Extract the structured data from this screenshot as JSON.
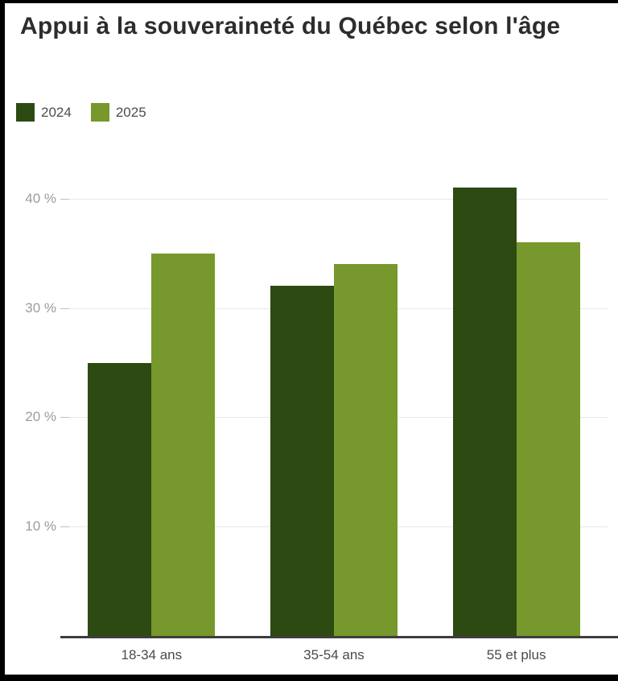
{
  "title": "Appui à la souveraineté du Québec selon l'âge",
  "chart_data": {
    "type": "bar",
    "title": "Appui à la souveraineté du Québec selon l'âge",
    "categories": [
      "18-34 ans",
      "35-54 ans",
      "55 et plus"
    ],
    "series": [
      {
        "name": "2024",
        "color": "#2C4A12",
        "values": [
          25,
          32,
          41
        ]
      },
      {
        "name": "2025",
        "color": "#76982C",
        "values": [
          35,
          34,
          36
        ]
      }
    ],
    "xlabel": "",
    "ylabel": "",
    "y_ticks": [
      10,
      20,
      30,
      40
    ],
    "y_tick_suffix": " %",
    "ylim": [
      0,
      44
    ],
    "grid": true,
    "legend_position": "top-left"
  },
  "colors": {
    "series_2024": "#2C4A12",
    "series_2025": "#76982C",
    "gridline": "#e8e8e8",
    "tick": "#c0c0c0",
    "axis_line": "#3e3e3e",
    "y_tick_label": "#9c9c9c",
    "category_label": "#4a4a4a",
    "title_text": "#2d2d2d",
    "background": "#ffffff",
    "frame": "#000000"
  }
}
